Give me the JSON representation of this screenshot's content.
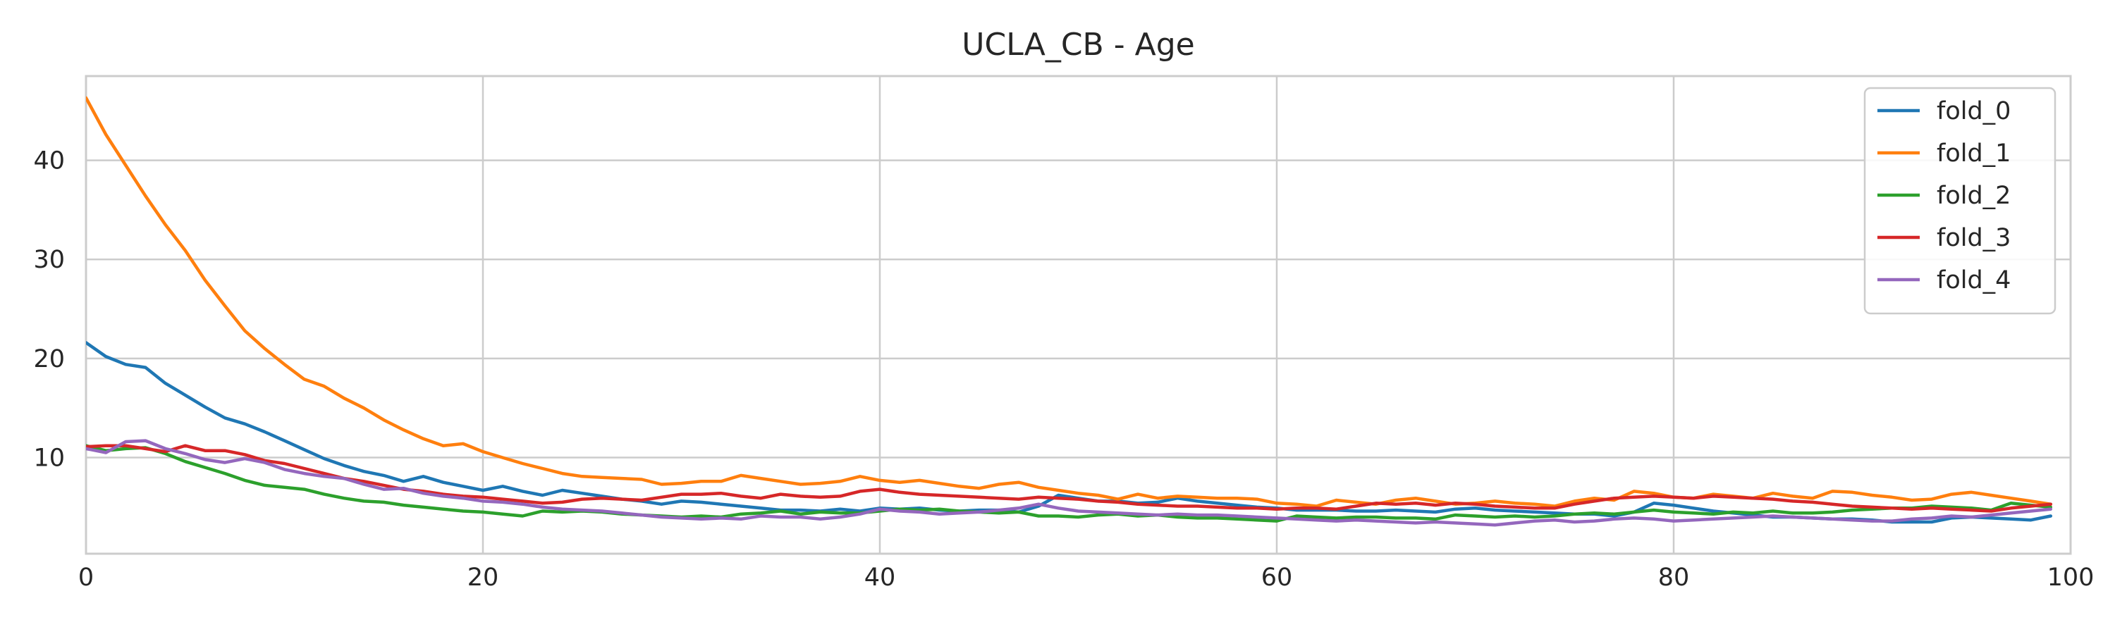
{
  "chart_data": {
    "type": "line",
    "title": "UCLA_CB - Age",
    "xlabel": "",
    "ylabel": "",
    "xlim": [
      0,
      100
    ],
    "ylim": [
      0.3,
      48.5
    ],
    "x_ticks": [
      0,
      20,
      40,
      60,
      80,
      100
    ],
    "y_ticks": [
      10,
      20,
      30,
      40
    ],
    "grid": true,
    "legend_position": "top-right",
    "x": [
      0,
      1,
      2,
      3,
      4,
      5,
      6,
      7,
      8,
      9,
      10,
      11,
      12,
      13,
      14,
      15,
      16,
      17,
      18,
      19,
      20,
      21,
      22,
      23,
      24,
      25,
      26,
      27,
      28,
      29,
      30,
      31,
      32,
      33,
      34,
      35,
      36,
      37,
      38,
      39,
      40,
      41,
      42,
      43,
      44,
      45,
      46,
      47,
      48,
      49,
      50,
      51,
      52,
      53,
      54,
      55,
      56,
      57,
      58,
      59,
      60,
      61,
      62,
      63,
      64,
      65,
      66,
      67,
      68,
      69,
      70,
      71,
      72,
      73,
      74,
      75,
      76,
      77,
      78,
      79,
      80,
      81,
      82,
      83,
      84,
      85,
      86,
      87,
      88,
      89,
      90,
      91,
      92,
      93,
      94,
      95,
      96,
      97,
      98,
      99
    ],
    "series": [
      {
        "name": "fold_0",
        "color": "#1f77b4",
        "values": [
          21.6,
          20.2,
          19.4,
          19.1,
          17.5,
          16.3,
          15.1,
          14.0,
          13.4,
          12.6,
          11.7,
          10.8,
          9.9,
          9.2,
          8.6,
          8.2,
          7.6,
          8.1,
          7.5,
          7.1,
          6.7,
          7.1,
          6.6,
          6.2,
          6.7,
          6.4,
          6.1,
          5.8,
          5.6,
          5.3,
          5.6,
          5.5,
          5.3,
          5.1,
          4.9,
          4.7,
          4.7,
          4.6,
          4.8,
          4.6,
          4.9,
          4.8,
          4.9,
          4.7,
          4.6,
          4.7,
          4.7,
          4.5,
          5.1,
          6.2,
          5.9,
          5.6,
          5.6,
          5.4,
          5.5,
          5.9,
          5.6,
          5.4,
          5.2,
          5.0,
          4.9,
          4.7,
          4.7,
          4.7,
          4.6,
          4.6,
          4.7,
          4.6,
          4.5,
          4.8,
          4.9,
          4.7,
          4.6,
          4.5,
          4.4,
          4.3,
          4.3,
          4.1,
          4.5,
          5.4,
          5.2,
          4.9,
          4.6,
          4.4,
          4.2,
          4.0,
          4.0,
          3.9,
          3.8,
          3.8,
          3.7,
          3.5,
          3.5,
          3.5,
          3.9,
          4.0,
          3.9,
          3.8,
          3.7,
          4.1
        ]
      },
      {
        "name": "fold_1",
        "color": "#ff7f0e",
        "values": [
          46.3,
          42.6,
          39.5,
          36.4,
          33.5,
          30.9,
          27.9,
          25.3,
          22.8,
          21.0,
          19.4,
          17.9,
          17.2,
          16.0,
          15.0,
          13.8,
          12.8,
          11.9,
          11.2,
          11.4,
          10.6,
          10.0,
          9.4,
          8.9,
          8.4,
          8.1,
          8.0,
          7.9,
          7.8,
          7.3,
          7.4,
          7.6,
          7.6,
          8.2,
          7.9,
          7.6,
          7.3,
          7.4,
          7.6,
          8.1,
          7.7,
          7.5,
          7.7,
          7.4,
          7.1,
          6.9,
          7.3,
          7.5,
          7.0,
          6.7,
          6.4,
          6.2,
          5.8,
          6.3,
          5.9,
          6.1,
          6.0,
          5.9,
          5.9,
          5.8,
          5.4,
          5.3,
          5.1,
          5.7,
          5.5,
          5.3,
          5.7,
          5.9,
          5.6,
          5.3,
          5.4,
          5.6,
          5.4,
          5.3,
          5.1,
          5.6,
          5.9,
          5.7,
          6.6,
          6.4,
          6.0,
          5.9,
          6.3,
          6.1,
          5.9,
          6.4,
          6.1,
          5.9,
          6.6,
          6.5,
          6.2,
          6.0,
          5.7,
          5.8,
          6.3,
          6.5,
          6.2,
          5.9,
          5.6,
          5.3
        ]
      },
      {
        "name": "fold_2",
        "color": "#2ca02c",
        "values": [
          11.2,
          10.7,
          10.9,
          11.0,
          10.4,
          9.6,
          9.0,
          8.4,
          7.7,
          7.2,
          7.0,
          6.8,
          6.3,
          5.9,
          5.6,
          5.5,
          5.2,
          5.0,
          4.8,
          4.6,
          4.5,
          4.3,
          4.1,
          4.6,
          4.5,
          4.6,
          4.5,
          4.3,
          4.2,
          4.1,
          4.0,
          4.1,
          4.0,
          4.3,
          4.4,
          4.6,
          4.3,
          4.5,
          4.4,
          4.4,
          4.6,
          4.8,
          4.7,
          4.8,
          4.6,
          4.5,
          4.4,
          4.5,
          4.1,
          4.1,
          4.0,
          4.2,
          4.3,
          4.1,
          4.2,
          4.0,
          3.9,
          3.9,
          3.8,
          3.7,
          3.6,
          4.1,
          4.0,
          3.9,
          4.0,
          4.0,
          3.9,
          3.9,
          3.8,
          4.2,
          4.1,
          4.0,
          4.1,
          4.0,
          4.1,
          4.3,
          4.4,
          4.3,
          4.5,
          4.7,
          4.5,
          4.4,
          4.3,
          4.5,
          4.4,
          4.6,
          4.4,
          4.4,
          4.5,
          4.7,
          4.8,
          4.9,
          4.9,
          5.1,
          5.0,
          4.9,
          4.7,
          5.4,
          5.2,
          5.0
        ]
      },
      {
        "name": "fold_3",
        "color": "#d62728",
        "values": [
          11.1,
          11.2,
          11.2,
          10.9,
          10.6,
          11.2,
          10.7,
          10.7,
          10.3,
          9.7,
          9.4,
          8.9,
          8.4,
          7.9,
          7.6,
          7.2,
          6.8,
          6.6,
          6.3,
          6.1,
          6.0,
          5.8,
          5.6,
          5.4,
          5.5,
          5.8,
          5.9,
          5.8,
          5.7,
          6.0,
          6.3,
          6.3,
          6.4,
          6.1,
          5.9,
          6.3,
          6.1,
          6.0,
          6.1,
          6.6,
          6.8,
          6.5,
          6.3,
          6.2,
          6.1,
          6.0,
          5.9,
          5.8,
          6.0,
          5.9,
          5.8,
          5.6,
          5.5,
          5.3,
          5.2,
          5.1,
          5.1,
          5.0,
          4.9,
          4.9,
          4.8,
          4.9,
          4.9,
          4.8,
          5.1,
          5.4,
          5.3,
          5.4,
          5.2,
          5.4,
          5.3,
          5.1,
          5.0,
          4.9,
          4.9,
          5.3,
          5.6,
          5.9,
          6.0,
          6.1,
          6.0,
          5.9,
          6.1,
          6.0,
          5.9,
          5.8,
          5.6,
          5.5,
          5.3,
          5.1,
          5.0,
          4.9,
          4.8,
          4.9,
          4.8,
          4.7,
          4.6,
          4.9,
          5.1,
          5.3
        ]
      },
      {
        "name": "fold_4",
        "color": "#9467bd",
        "values": [
          10.9,
          10.5,
          11.6,
          11.7,
          10.9,
          10.4,
          9.8,
          9.5,
          9.9,
          9.5,
          8.8,
          8.4,
          8.1,
          7.9,
          7.3,
          6.8,
          6.9,
          6.4,
          6.1,
          5.9,
          5.6,
          5.5,
          5.3,
          5.0,
          4.8,
          4.7,
          4.6,
          4.4,
          4.2,
          4.0,
          3.9,
          3.8,
          3.9,
          3.8,
          4.1,
          4.0,
          4.0,
          3.8,
          4.0,
          4.3,
          4.8,
          4.6,
          4.5,
          4.3,
          4.4,
          4.5,
          4.7,
          4.9,
          5.3,
          4.9,
          4.6,
          4.5,
          4.4,
          4.3,
          4.2,
          4.3,
          4.2,
          4.2,
          4.1,
          4.0,
          3.9,
          3.8,
          3.7,
          3.6,
          3.7,
          3.6,
          3.5,
          3.4,
          3.5,
          3.4,
          3.3,
          3.2,
          3.4,
          3.6,
          3.7,
          3.5,
          3.6,
          3.8,
          3.9,
          3.8,
          3.6,
          3.7,
          3.8,
          3.9,
          4.0,
          4.1,
          4.0,
          3.9,
          3.8,
          3.7,
          3.6,
          3.6,
          3.8,
          3.9,
          4.1,
          4.0,
          4.2,
          4.4,
          4.6,
          4.8
        ]
      }
    ]
  }
}
